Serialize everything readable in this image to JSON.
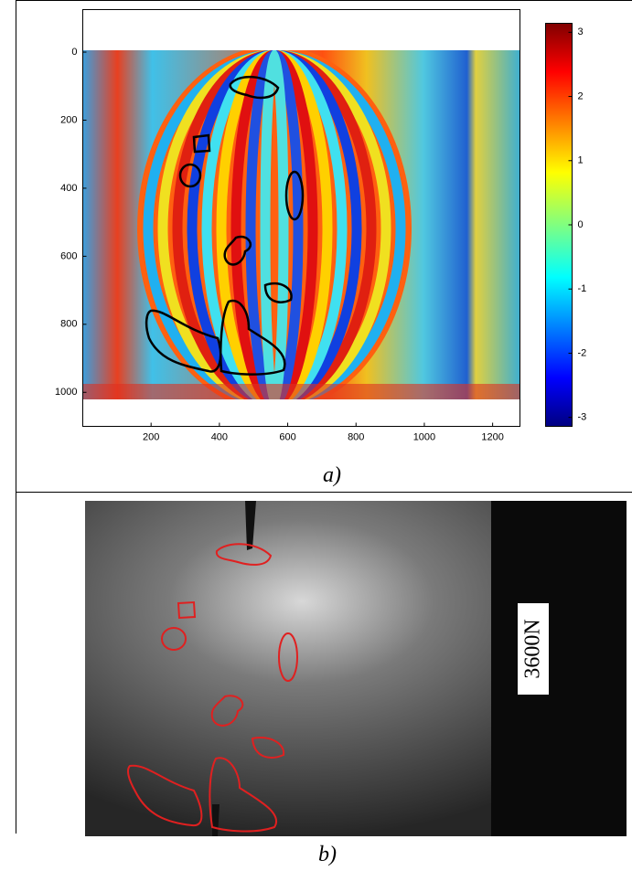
{
  "panel_a": {
    "xlim": [
      0,
      1280
    ],
    "ylim": [
      -125,
      1100
    ],
    "xticks": [
      200,
      400,
      600,
      800,
      1000,
      1200
    ],
    "yticks": [
      0,
      200,
      400,
      600,
      800,
      1000
    ],
    "colorbar": {
      "clim": [
        -3.14,
        3.14
      ],
      "ticks": [
        3,
        2,
        1,
        0,
        -1,
        -2,
        -3
      ]
    },
    "caption": "a)"
  },
  "panel_b": {
    "label": "3600N",
    "caption": "b)"
  }
}
